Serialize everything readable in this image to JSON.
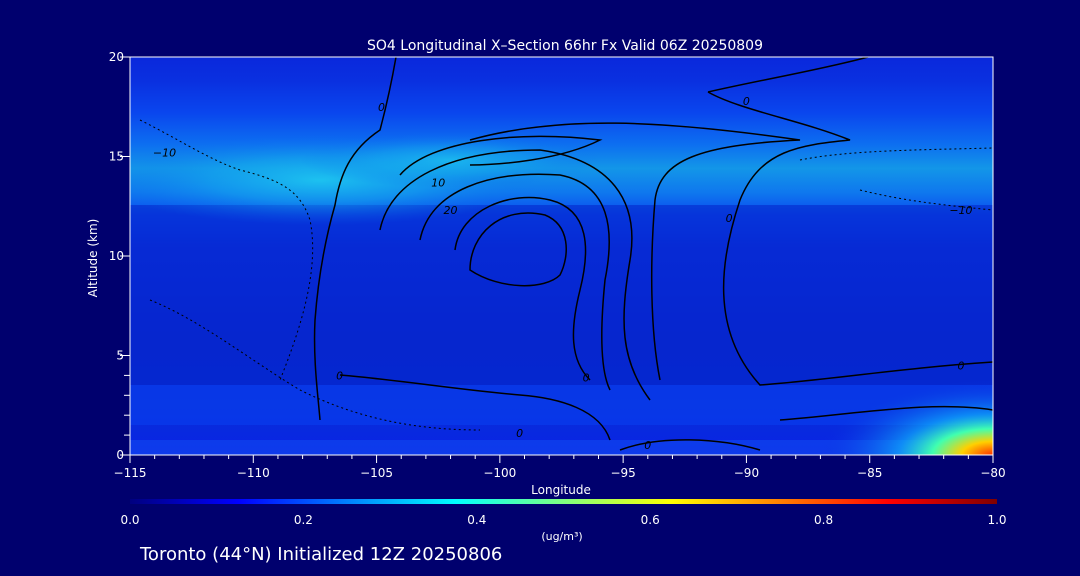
{
  "header": {
    "title": "SO4 Longitudinal X–Section 66hr  Fx Valid 06Z 20250809"
  },
  "footer": {
    "location_label": "Toronto (44°N) Initialized 12Z 20250806"
  },
  "colors": {
    "background": "#00006e",
    "text": "#ffffff",
    "axis": "#ffffff",
    "contour": "#000000"
  },
  "chart_data": {
    "type": "heatmap",
    "title": "SO4 Longitudinal X–Section 66hr  Fx Valid 06Z 20250809",
    "xlabel": "Longitude",
    "ylabel": "Altitude (km)",
    "xlim": [
      -115,
      -80
    ],
    "ylim": [
      0,
      20
    ],
    "x_ticks": [
      {
        "value": -115,
        "label": "−115"
      },
      {
        "value": -110,
        "label": "−110"
      },
      {
        "value": -105,
        "label": "−105"
      },
      {
        "value": -100,
        "label": "−100"
      },
      {
        "value": -95,
        "label": "−95"
      },
      {
        "value": -90,
        "label": "−90"
      },
      {
        "value": -85,
        "label": "−85"
      },
      {
        "value": -80,
        "label": "−80"
      }
    ],
    "y_ticks": [
      {
        "value": 0,
        "label": "0"
      },
      {
        "value": 5,
        "label": "5"
      },
      {
        "value": 10,
        "label": "10"
      },
      {
        "value": 15,
        "label": "15"
      },
      {
        "value": 20,
        "label": "20"
      }
    ],
    "colorbar": {
      "label": "(ug/m³)",
      "range": [
        0.0,
        1.0
      ],
      "ticks": [
        {
          "value": 0.0,
          "label": "0.0"
        },
        {
          "value": 0.2,
          "label": "0.2"
        },
        {
          "value": 0.4,
          "label": "0.4"
        },
        {
          "value": 0.6,
          "label": "0.6"
        },
        {
          "value": 0.8,
          "label": "0.8"
        },
        {
          "value": 1.0,
          "label": "1.0"
        }
      ],
      "stops": [
        "#00007f",
        "#0000ff",
        "#0080ff",
        "#00ffff",
        "#80ff80",
        "#ffff00",
        "#ff8000",
        "#ff0000",
        "#7f0000"
      ]
    },
    "contour_labels": [
      {
        "lon": -104.8,
        "alt": 17.5,
        "text": "0"
      },
      {
        "lon": -90.0,
        "alt": 17.8,
        "text": "0"
      },
      {
        "lon": -113.6,
        "alt": 15.2,
        "text": "−10"
      },
      {
        "lon": -102.5,
        "alt": 13.7,
        "text": "10"
      },
      {
        "lon": -102.0,
        "alt": 12.3,
        "text": "20"
      },
      {
        "lon": -90.7,
        "alt": 11.9,
        "text": "0"
      },
      {
        "lon": -81.3,
        "alt": 12.3,
        "text": "−10"
      },
      {
        "lon": -106.5,
        "alt": 4.0,
        "text": "0"
      },
      {
        "lon": -96.5,
        "alt": 3.9,
        "text": "0"
      },
      {
        "lon": -81.3,
        "alt": 4.5,
        "text": "0"
      },
      {
        "lon": -99.2,
        "alt": 1.1,
        "text": "0"
      },
      {
        "lon": -94.0,
        "alt": 0.5,
        "text": "0"
      }
    ]
  }
}
